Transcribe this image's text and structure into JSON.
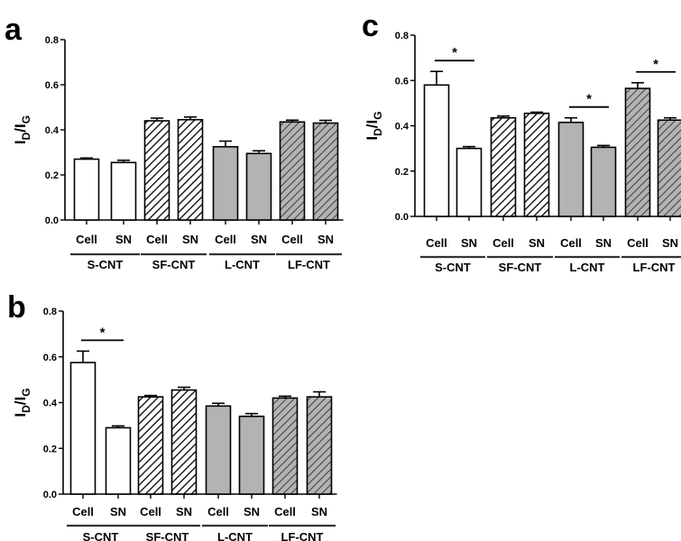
{
  "chart_data": [
    {
      "panel": "a",
      "type": "bar",
      "categories": [
        "Cell",
        "SN",
        "Cell",
        "SN",
        "Cell",
        "SN",
        "Cell",
        "SN"
      ],
      "groups": [
        "S-CNT",
        "SF-CNT",
        "L-CNT",
        "LF-CNT"
      ],
      "values": [
        0.27,
        0.255,
        0.44,
        0.445,
        0.325,
        0.295,
        0.435,
        0.43
      ],
      "errors": [
        0.005,
        0.01,
        0.012,
        0.012,
        0.025,
        0.012,
        0.008,
        0.012
      ],
      "patterns": [
        "white",
        "white",
        "hatch",
        "hatch",
        "gray",
        "gray",
        "gray-hatch",
        "gray-hatch"
      ],
      "ylabel_main": "I",
      "ylabel_sub1": "D",
      "ylabel_mid": "/I",
      "ylabel_sub2": "G",
      "ylim": [
        0,
        0.8
      ],
      "yticks": [
        "0.0",
        "0.2",
        "0.4",
        "0.6",
        "0.8"
      ],
      "significance": []
    },
    {
      "panel": "b",
      "type": "bar",
      "categories": [
        "Cell",
        "SN",
        "Cell",
        "SN",
        "Cell",
        "SN",
        "Cell",
        "SN"
      ],
      "groups": [
        "S-CNT",
        "SF-CNT",
        "L-CNT",
        "LF-CNT"
      ],
      "values": [
        0.575,
        0.29,
        0.425,
        0.455,
        0.385,
        0.34,
        0.42,
        0.425
      ],
      "errors": [
        0.05,
        0.008,
        0.006,
        0.012,
        0.012,
        0.012,
        0.008,
        0.022
      ],
      "patterns": [
        "white",
        "white",
        "hatch",
        "hatch",
        "gray",
        "gray",
        "gray-hatch",
        "gray-hatch"
      ],
      "ylabel_main": "I",
      "ylabel_sub1": "D",
      "ylabel_mid": "/I",
      "ylabel_sub2": "G",
      "ylim": [
        0,
        0.8
      ],
      "yticks": [
        "0.0",
        "0.2",
        "0.4",
        "0.6",
        "0.8"
      ],
      "significance": [
        {
          "from": 0,
          "to": 1,
          "label": "*"
        }
      ]
    },
    {
      "panel": "c",
      "type": "bar",
      "categories": [
        "Cell",
        "SN",
        "Cell",
        "SN",
        "Cell",
        "SN",
        "Cell",
        "SN"
      ],
      "groups": [
        "S-CNT",
        "SF-CNT",
        "L-CNT",
        "LF-CNT"
      ],
      "values": [
        0.58,
        0.3,
        0.435,
        0.455,
        0.415,
        0.305,
        0.565,
        0.425
      ],
      "errors": [
        0.06,
        0.008,
        0.008,
        0.005,
        0.02,
        0.008,
        0.025,
        0.01
      ],
      "patterns": [
        "white",
        "white",
        "hatch",
        "hatch",
        "gray",
        "gray",
        "gray-hatch",
        "gray-hatch"
      ],
      "ylabel_main": "I",
      "ylabel_sub1": "D",
      "ylabel_mid": "/I",
      "ylabel_sub2": "G",
      "ylim": [
        0,
        0.8
      ],
      "yticks": [
        "0.0",
        "0.2",
        "0.4",
        "0.6",
        "0.8"
      ],
      "significance": [
        {
          "from": 0,
          "to": 1,
          "label": "*"
        },
        {
          "from": 4,
          "to": 5,
          "label": "*"
        },
        {
          "from": 6,
          "to": 7,
          "label": "*"
        }
      ]
    }
  ],
  "colors": {
    "gray_fill": "#b3b3b3",
    "bar_stroke": "#000000",
    "white_fill": "#ffffff",
    "group_underline": "#333333"
  }
}
